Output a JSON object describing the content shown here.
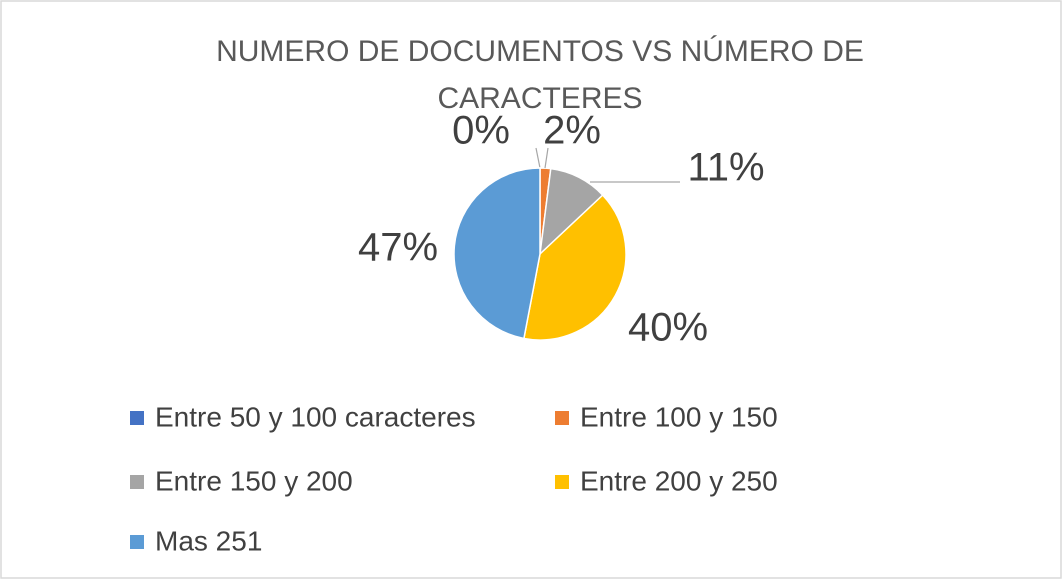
{
  "chart_data": {
    "type": "pie",
    "title": "NUMERO DE DOCUMENTOS VS NÚMERO DE CARACTERES",
    "categories": [
      "Entre 50 y 100 caracteres",
      "Entre 100 y 150",
      "Entre 150 y 200",
      "Entre 200 y 250",
      "Mas 251"
    ],
    "values": [
      0,
      2,
      11,
      40,
      47
    ],
    "value_labels": [
      "0%",
      "2%",
      "11%",
      "40%",
      "47%"
    ],
    "colors": [
      "#4472c4",
      "#ed7d31",
      "#a5a5a5",
      "#ffc000",
      "#5b9bd5"
    ],
    "legend": "bottom"
  }
}
